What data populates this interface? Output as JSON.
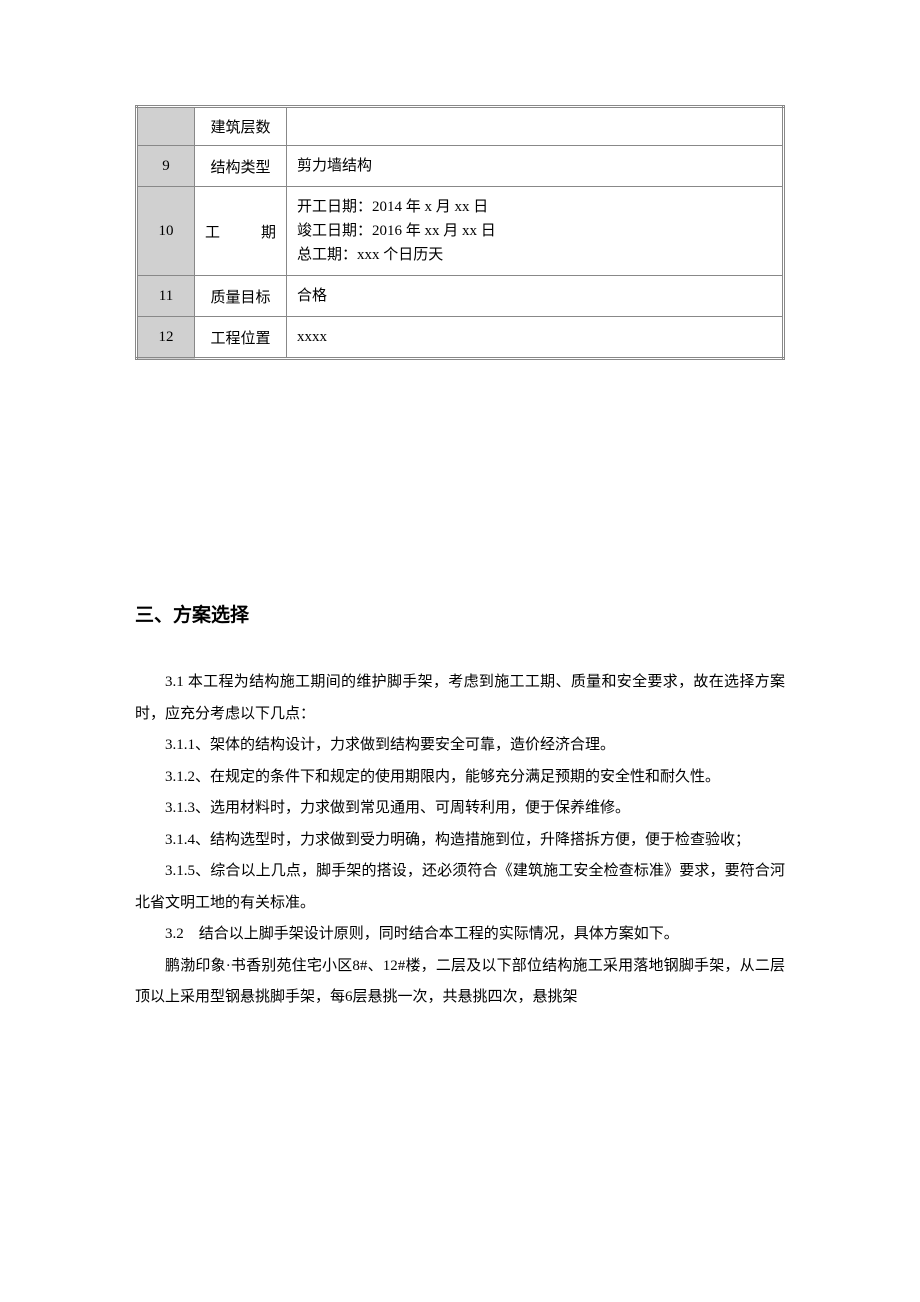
{
  "table": {
    "rows": [
      {
        "num": "",
        "label": "建筑层数",
        "value": ""
      },
      {
        "num": "9",
        "label": "结构类型",
        "value": "剪力墙结构"
      },
      {
        "num": "10",
        "label": "工　　期",
        "value": "开工日期：2014 年 x 月 xx 日\n竣工日期：2016 年 xx 月 xx 日\n总工期：xxx 个日历天"
      },
      {
        "num": "11",
        "label": "质量目标",
        "value": "合格"
      },
      {
        "num": "12",
        "label": "工程位置",
        "value": "xxxx"
      }
    ],
    "style": {
      "border_color": "#888888",
      "header_bg": "#d0d0d0",
      "font_size": 15,
      "row_padding": 8
    }
  },
  "section": {
    "heading": "三、方案选择",
    "paragraphs": [
      "3.1 本工程为结构施工期间的维护脚手架，考虑到施工工期、质量和安全要求，故在选择方案时，应充分考虑以下几点：",
      "3.1.1、架体的结构设计，力求做到结构要安全可靠，造价经济合理。",
      "3.1.2、在规定的条件下和规定的使用期限内，能够充分满足预期的安全性和耐久性。",
      "3.1.3、选用材料时，力求做到常见通用、可周转利用，便于保养维修。",
      "3.1.4、结构选型时，力求做到受力明确，构造措施到位，升降搭拆方便，便于检查验收；",
      "3.1.5、综合以上几点，脚手架的搭设，还必须符合《建筑施工安全检查标准》要求，要符合河北省文明工地的有关标准。",
      "3.2　结合以上脚手架设计原则，同时结合本工程的实际情况，具体方案如下。",
      "鹏渤印象·书香别苑住宅小区8#、12#楼，二层及以下部位结构施工采用落地钢脚手架，从二层顶以上采用型钢悬挑脚手架，每6层悬挑一次，共悬挑四次，悬挑架"
    ]
  },
  "style": {
    "background_color": "#ffffff",
    "heading_font_size": 19,
    "body_font_size": 15,
    "body_line_height": 2.1,
    "text_color": "#000000"
  }
}
